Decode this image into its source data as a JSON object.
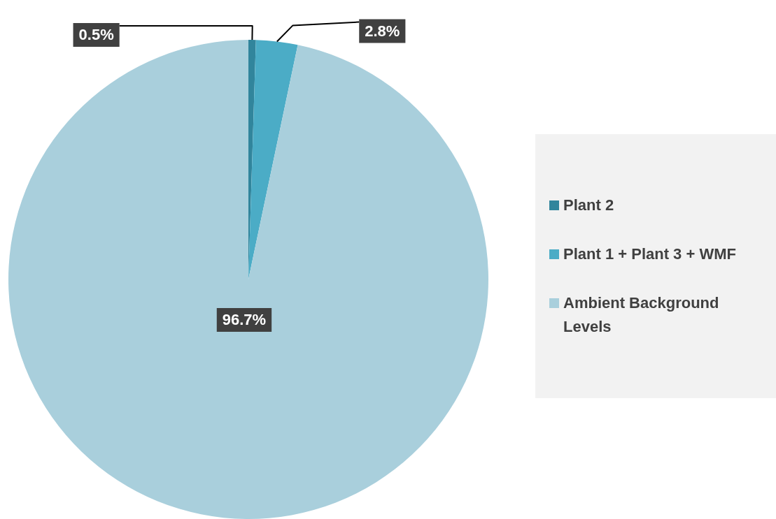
{
  "chart_data": {
    "type": "pie",
    "categories": [
      "Plant 2",
      "Plant 1 + Plant 3 + WMF",
      "Ambient Background Levels"
    ],
    "values": [
      0.5,
      2.8,
      96.7
    ],
    "colors": [
      "#31859c",
      "#4bacc6",
      "#a9cfdc"
    ],
    "value_labels": [
      "0.5%",
      "2.8%",
      "96.7%"
    ],
    "legend": "right"
  }
}
